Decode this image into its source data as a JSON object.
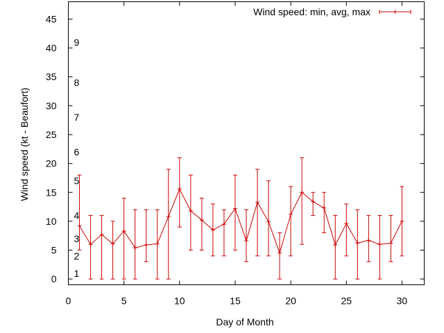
{
  "chart_data": {
    "type": "line",
    "title": "",
    "xlabel": "Day of Month",
    "ylabel": "Wind speed (kt - Beaufort)",
    "xlim": [
      0,
      32
    ],
    "ylim": [
      -1,
      48
    ],
    "xticks": [
      0,
      5,
      10,
      15,
      20,
      25,
      30
    ],
    "yticks": [
      0,
      5,
      10,
      15,
      20,
      25,
      30,
      35,
      40,
      45
    ],
    "grid": false,
    "legend_position": "top-right",
    "beaufort_labels": [
      {
        "label": "1",
        "kt": 1
      },
      {
        "label": "2",
        "kt": 4
      },
      {
        "label": "3",
        "kt": 7
      },
      {
        "label": "4",
        "kt": 11
      },
      {
        "label": "5",
        "kt": 17
      },
      {
        "label": "6",
        "kt": 22
      },
      {
        "label": "7",
        "kt": 28
      },
      {
        "label": "8",
        "kt": 34
      },
      {
        "label": "9",
        "kt": 41
      }
    ],
    "series": [
      {
        "name": "Wind speed: min, avg, max",
        "color": "#cc0000",
        "x": [
          1,
          2,
          3,
          4,
          5,
          6,
          7,
          8,
          9,
          10,
          11,
          12,
          13,
          14,
          15,
          16,
          17,
          18,
          19,
          20,
          21,
          22,
          23,
          24,
          25,
          26,
          27,
          28,
          29,
          30
        ],
        "avg": [
          9.2,
          6.0,
          7.7,
          6.1,
          8.3,
          5.4,
          5.9,
          6.1,
          10.8,
          15.6,
          11.8,
          10.2,
          8.5,
          9.5,
          12.2,
          6.6,
          13.3,
          9.9,
          4.5,
          11.2,
          15.0,
          13.4,
          12.3,
          5.9,
          9.6,
          6.2,
          6.7,
          6.0,
          6.2,
          10.0
        ],
        "min": [
          5,
          0,
          0,
          0,
          0,
          0,
          3,
          0,
          0,
          9,
          5,
          5,
          4,
          4,
          5,
          3,
          4,
          4,
          0,
          4,
          6,
          11,
          8,
          0,
          4,
          0,
          3,
          0,
          3,
          4
        ],
        "max": [
          18,
          11,
          11,
          10,
          14,
          12,
          12,
          12,
          19,
          21,
          18,
          14,
          13,
          12,
          18,
          12,
          19,
          17,
          8,
          16,
          21,
          15,
          15,
          11,
          13,
          12,
          11,
          11,
          11,
          16
        ]
      }
    ]
  }
}
